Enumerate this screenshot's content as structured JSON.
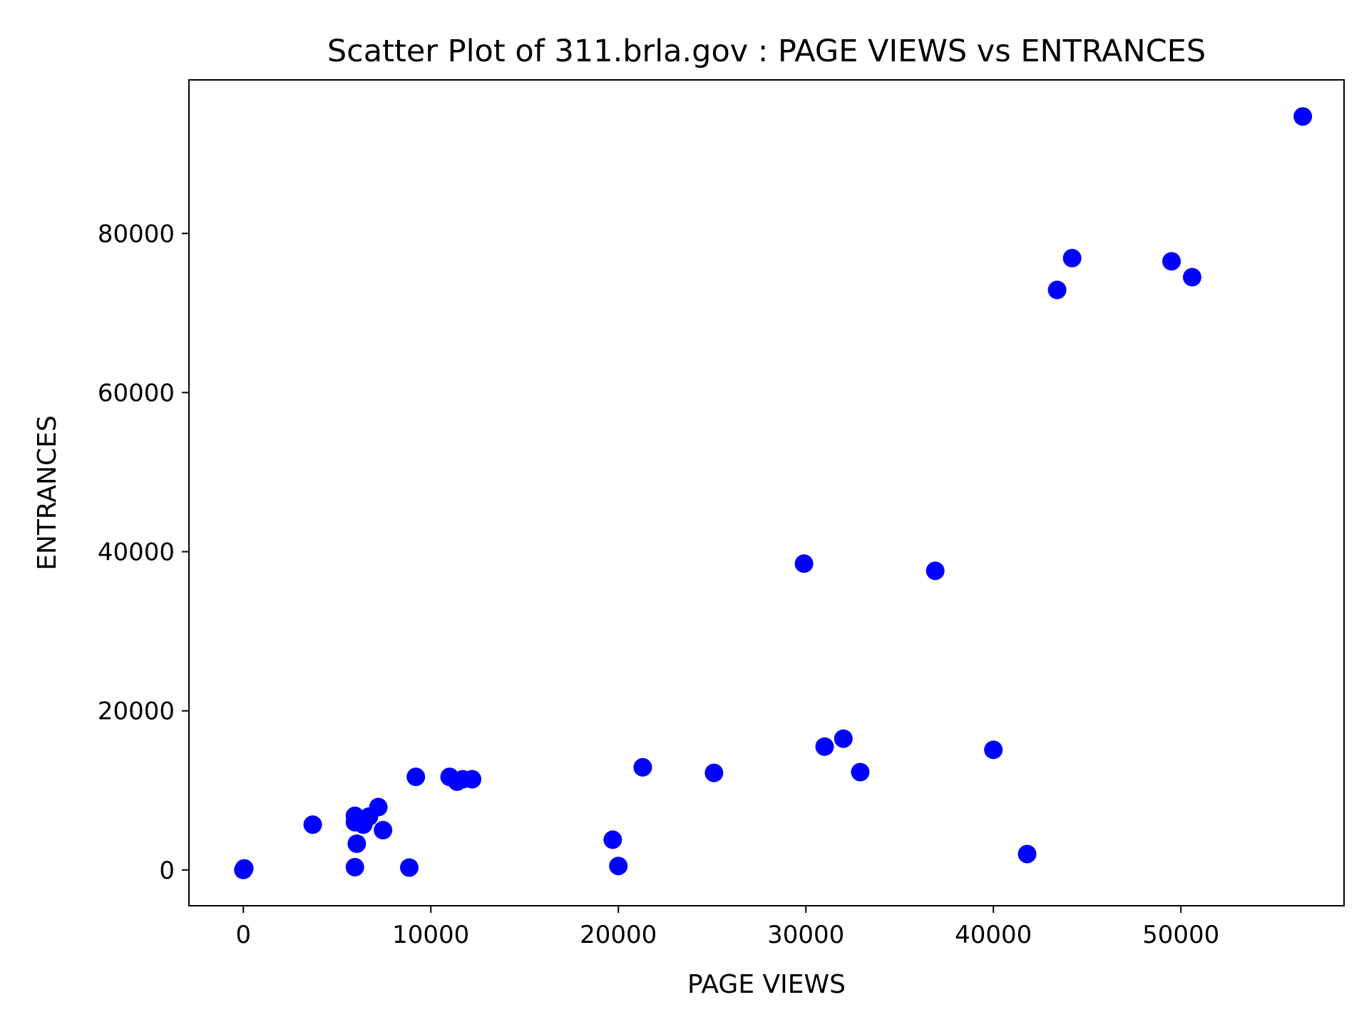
{
  "chart_data": {
    "type": "scatter",
    "title": "Scatter Plot of 311.brla.gov : PAGE VIEWS vs ENTRANCES",
    "xlabel": "PAGE VIEWS",
    "ylabel": "ENTRANCES",
    "xlim": [
      -2900,
      58700
    ],
    "ylim": [
      -4500,
      99300
    ],
    "xticks": [
      0,
      10000,
      20000,
      30000,
      40000,
      50000
    ],
    "yticks": [
      0,
      20000,
      40000,
      60000,
      80000
    ],
    "grid": false,
    "marker_color": "#0000ff",
    "series": [
      {
        "points": [
          {
            "x": 0,
            "y": 0
          },
          {
            "x": 50,
            "y": 200
          },
          {
            "x": 3700,
            "y": 5700
          },
          {
            "x": 5950,
            "y": 6800
          },
          {
            "x": 5950,
            "y": 6000
          },
          {
            "x": 6050,
            "y": 3300
          },
          {
            "x": 5950,
            "y": 350
          },
          {
            "x": 6400,
            "y": 5700
          },
          {
            "x": 6700,
            "y": 6700
          },
          {
            "x": 7200,
            "y": 7900
          },
          {
            "x": 7450,
            "y": 5000
          },
          {
            "x": 8850,
            "y": 300
          },
          {
            "x": 9200,
            "y": 11700
          },
          {
            "x": 11000,
            "y": 11700
          },
          {
            "x": 11400,
            "y": 11100
          },
          {
            "x": 11700,
            "y": 11400
          },
          {
            "x": 12200,
            "y": 11400
          },
          {
            "x": 19700,
            "y": 3800
          },
          {
            "x": 20000,
            "y": 500
          },
          {
            "x": 21300,
            "y": 12900
          },
          {
            "x": 25100,
            "y": 12200
          },
          {
            "x": 29900,
            "y": 38500
          },
          {
            "x": 31000,
            "y": 15500
          },
          {
            "x": 32000,
            "y": 16500
          },
          {
            "x": 32900,
            "y": 12300
          },
          {
            "x": 36900,
            "y": 37600
          },
          {
            "x": 40000,
            "y": 15100
          },
          {
            "x": 41800,
            "y": 2000
          },
          {
            "x": 43400,
            "y": 72900
          },
          {
            "x": 44200,
            "y": 76900
          },
          {
            "x": 49500,
            "y": 76500
          },
          {
            "x": 50600,
            "y": 74500
          },
          {
            "x": 56500,
            "y": 94700
          }
        ]
      }
    ]
  }
}
